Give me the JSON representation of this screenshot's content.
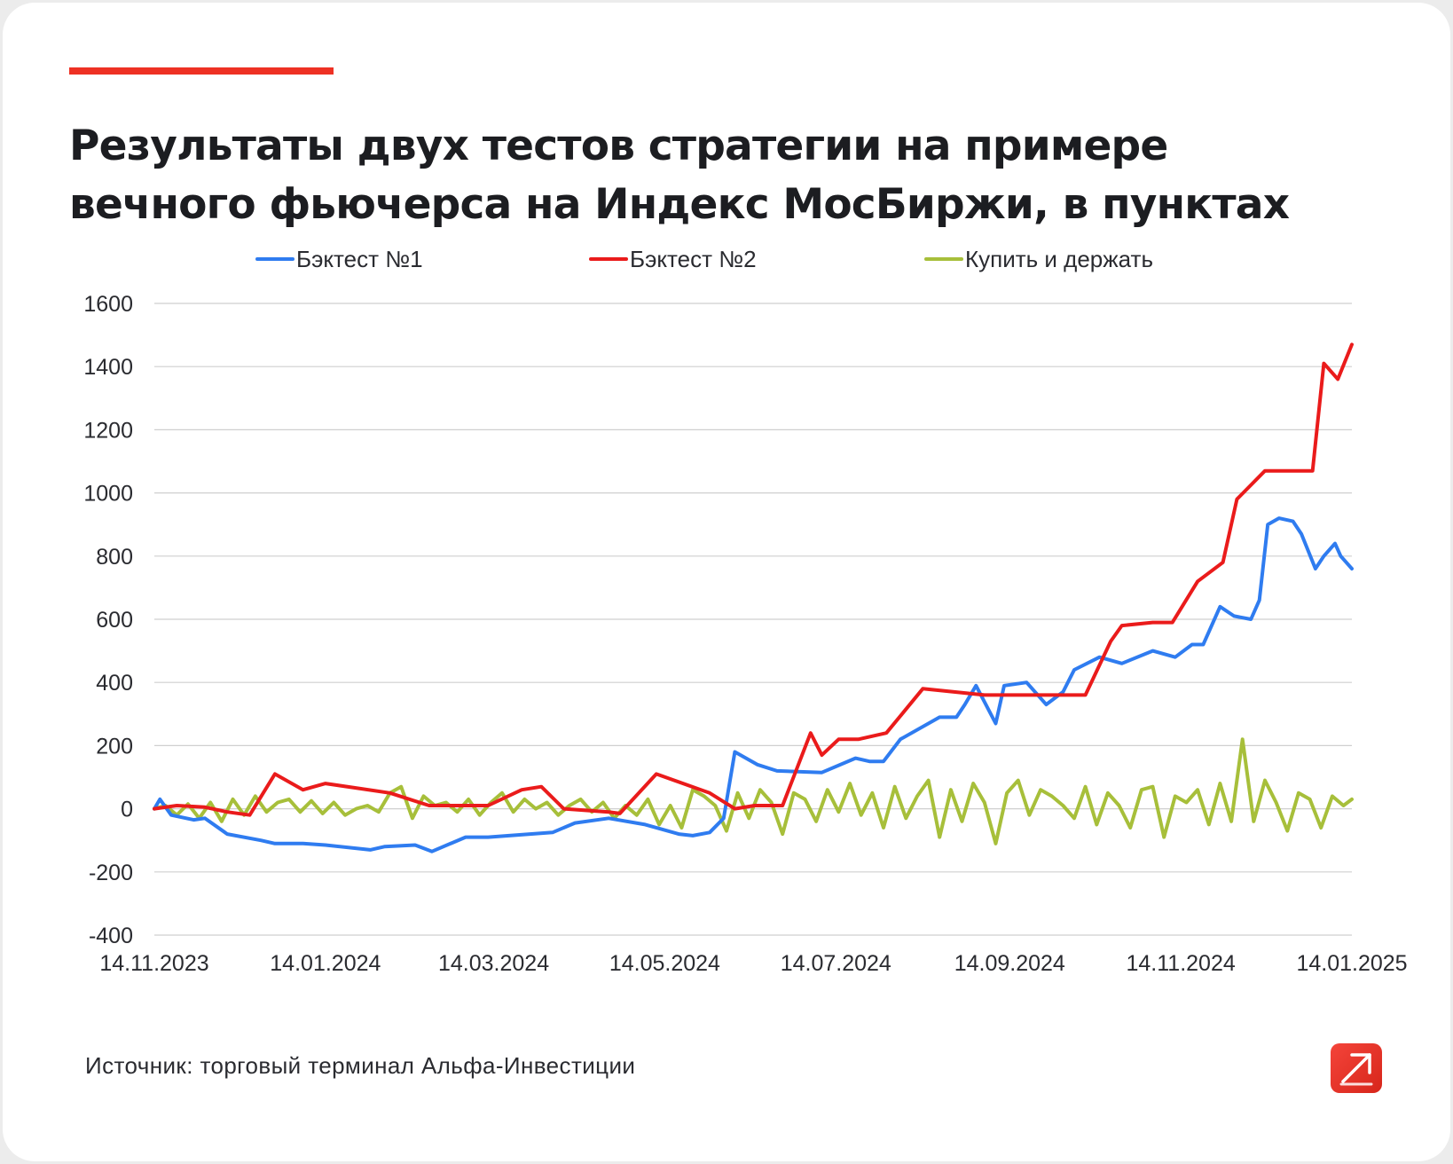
{
  "title_lines": [
    "Результаты двух тестов стратегии на примере",
    "вечного фьючерса на Индекс МосБиржи, в пунктах"
  ],
  "source": "Источник: торговый терминал Альфа-Инвестиции",
  "colors": {
    "accent": "#ee3124",
    "series1": "#2f7cf0",
    "series2": "#ea1b1b",
    "series3": "#a7bf3a",
    "grid": "#cfcfcf",
    "text": "#1c1d21"
  },
  "logo_icon": "alfa-arrow-logo-icon",
  "chart_data": {
    "type": "line",
    "title": "Результаты двух тестов стратегии на примере вечного фьючерса на Индекс МосБиржи, в пунктах",
    "xlabel": "",
    "ylabel": "",
    "ylim": [
      -400,
      1600
    ],
    "yticks": [
      "1600",
      "1400",
      "1200",
      "1000",
      "800",
      "600",
      "400",
      "200",
      "0",
      "-200",
      "-400"
    ],
    "xlim": [
      "2023-11-14",
      "2025-01-14"
    ],
    "xticks": [
      "14.11.2023",
      "14.01.2024",
      "14.03.2024",
      "14.05.2024",
      "14.07.2024",
      "14.09.2024",
      "14.11.2024",
      "14.01.2025"
    ],
    "grid": true,
    "legend_position": "top",
    "series": [
      {
        "name": "Бэктест №1",
        "color": "#2f7cf0",
        "x": [
          "2023-11-14",
          "2023-11-16",
          "2023-11-20",
          "2023-11-28",
          "2023-12-02",
          "2023-12-10",
          "2023-12-22",
          "2023-12-27",
          "2023-12-31",
          "2024-01-06",
          "2024-01-14",
          "2024-01-30",
          "2024-02-04",
          "2024-02-15",
          "2024-02-21",
          "2024-03-04",
          "2024-03-12",
          "2024-04-04",
          "2024-04-12",
          "2024-04-24",
          "2024-05-07",
          "2024-05-19",
          "2024-05-24",
          "2024-05-30",
          "2024-06-04",
          "2024-06-08",
          "2024-06-16",
          "2024-06-23",
          "2024-07-09",
          "2024-07-21",
          "2024-07-26",
          "2024-07-31",
          "2024-08-06",
          "2024-08-20",
          "2024-08-26",
          "2024-08-29",
          "2024-09-02",
          "2024-09-09",
          "2024-09-12",
          "2024-09-20",
          "2024-09-27",
          "2024-10-03",
          "2024-10-07",
          "2024-10-16",
          "2024-10-24",
          "2024-11-04",
          "2024-11-12",
          "2024-11-18",
          "2024-11-22",
          "2024-11-28",
          "2024-12-03",
          "2024-12-09",
          "2024-12-12",
          "2024-12-15",
          "2024-12-19",
          "2024-12-24",
          "2024-12-27",
          "2025-01-01",
          "2025-01-04",
          "2025-01-08",
          "2025-01-10",
          "2025-01-14"
        ],
        "y": [
          0,
          30,
          -20,
          -35,
          -30,
          -80,
          -100,
          -110,
          -110,
          -110,
          -115,
          -130,
          -120,
          -115,
          -135,
          -90,
          -90,
          -75,
          -45,
          -30,
          -50,
          -80,
          -85,
          -75,
          -30,
          180,
          140,
          120,
          115,
          160,
          150,
          150,
          220,
          290,
          290,
          330,
          390,
          270,
          390,
          400,
          330,
          370,
          440,
          480,
          460,
          500,
          480,
          520,
          520,
          640,
          610,
          600,
          660,
          900,
          920,
          910,
          870,
          760,
          800,
          840,
          800,
          760
        ]
      },
      {
        "name": "Бэктест №2",
        "color": "#ea1b1b",
        "x": [
          "2023-11-14",
          "2023-11-22",
          "2023-12-02",
          "2023-12-10",
          "2023-12-18",
          "2023-12-27",
          "2024-01-06",
          "2024-01-14",
          "2024-02-06",
          "2024-02-20",
          "2024-03-12",
          "2024-03-24",
          "2024-03-31",
          "2024-04-08",
          "2024-04-24",
          "2024-04-28",
          "2024-05-11",
          "2024-05-30",
          "2024-06-08",
          "2024-06-15",
          "2024-06-25",
          "2024-07-05",
          "2024-07-09",
          "2024-07-15",
          "2024-07-22",
          "2024-08-01",
          "2024-08-14",
          "2024-09-05",
          "2024-09-19",
          "2024-10-02",
          "2024-10-11",
          "2024-10-20",
          "2024-10-24",
          "2024-11-04",
          "2024-11-11",
          "2024-11-20",
          "2024-11-29",
          "2024-12-04",
          "2024-12-14",
          "2024-12-31",
          "2025-01-04",
          "2025-01-09",
          "2025-01-14"
        ],
        "y": [
          0,
          10,
          5,
          -10,
          -20,
          110,
          60,
          80,
          50,
          10,
          10,
          60,
          70,
          0,
          -10,
          -15,
          110,
          50,
          0,
          10,
          10,
          240,
          170,
          220,
          220,
          240,
          380,
          360,
          360,
          360,
          360,
          530,
          580,
          590,
          590,
          720,
          780,
          980,
          1070,
          1070,
          1410,
          1360,
          1470
        ]
      },
      {
        "name": "Купить и держать",
        "color": "#a7bf3a",
        "x": [
          "2023-11-14",
          "2023-11-18",
          "2023-11-22",
          "2023-11-26",
          "2023-11-30",
          "2023-12-04",
          "2023-12-08",
          "2023-12-12",
          "2023-12-16",
          "2023-12-20",
          "2023-12-24",
          "2023-12-28",
          "2024-01-01",
          "2024-01-05",
          "2024-01-09",
          "2024-01-13",
          "2024-01-17",
          "2024-01-21",
          "2024-01-25",
          "2024-01-29",
          "2024-02-02",
          "2024-02-06",
          "2024-02-10",
          "2024-02-14",
          "2024-02-18",
          "2024-02-22",
          "2024-02-26",
          "2024-03-01",
          "2024-03-05",
          "2024-03-09",
          "2024-03-13",
          "2024-03-17",
          "2024-03-21",
          "2024-03-25",
          "2024-03-29",
          "2024-04-02",
          "2024-04-06",
          "2024-04-10",
          "2024-04-14",
          "2024-04-18",
          "2024-04-22",
          "2024-04-26",
          "2024-04-30",
          "2024-05-04",
          "2024-05-08",
          "2024-05-12",
          "2024-05-16",
          "2024-05-20",
          "2024-05-24",
          "2024-05-28",
          "2024-06-01",
          "2024-06-05",
          "2024-06-09",
          "2024-06-13",
          "2024-06-17",
          "2024-06-21",
          "2024-06-25",
          "2024-06-29",
          "2024-07-03",
          "2024-07-07",
          "2024-07-11",
          "2024-07-15",
          "2024-07-19",
          "2024-07-23",
          "2024-07-27",
          "2024-07-31",
          "2024-08-04",
          "2024-08-08",
          "2024-08-12",
          "2024-08-16",
          "2024-08-20",
          "2024-08-24",
          "2024-08-28",
          "2024-09-01",
          "2024-09-05",
          "2024-09-09",
          "2024-09-13",
          "2024-09-17",
          "2024-09-21",
          "2024-09-25",
          "2024-09-29",
          "2024-10-03",
          "2024-10-07",
          "2024-10-11",
          "2024-10-15",
          "2024-10-19",
          "2024-10-23",
          "2024-10-27",
          "2024-10-31",
          "2024-11-04",
          "2024-11-08",
          "2024-11-12",
          "2024-11-16",
          "2024-11-20",
          "2024-11-24",
          "2024-11-28",
          "2024-12-02",
          "2024-12-06",
          "2024-12-10",
          "2024-12-14",
          "2024-12-18",
          "2024-12-22",
          "2024-12-26",
          "2024-12-30",
          "2025-01-03",
          "2025-01-07",
          "2025-01-11",
          "2025-01-14"
        ],
        "y": [
          0,
          10,
          -20,
          15,
          -30,
          20,
          -40,
          30,
          -20,
          40,
          -10,
          20,
          30,
          -10,
          25,
          -15,
          20,
          -20,
          0,
          10,
          -10,
          50,
          70,
          -30,
          40,
          10,
          20,
          -10,
          30,
          -20,
          20,
          50,
          -10,
          30,
          0,
          20,
          -20,
          10,
          30,
          -10,
          20,
          -30,
          10,
          -20,
          30,
          -50,
          10,
          -60,
          60,
          40,
          10,
          -70,
          50,
          -30,
          60,
          20,
          -80,
          50,
          30,
          -40,
          60,
          -10,
          80,
          -20,
          50,
          -60,
          70,
          -30,
          40,
          90,
          -90,
          60,
          -40,
          80,
          20,
          -110,
          50,
          90,
          -20,
          60,
          40,
          10,
          -30,
          70,
          -50,
          50,
          10,
          -60,
          60,
          70,
          -90,
          40,
          20,
          60,
          -50,
          80,
          -40,
          220,
          -40,
          90,
          20,
          -70,
          50,
          30,
          -60,
          40,
          10,
          30
        ]
      }
    ]
  }
}
